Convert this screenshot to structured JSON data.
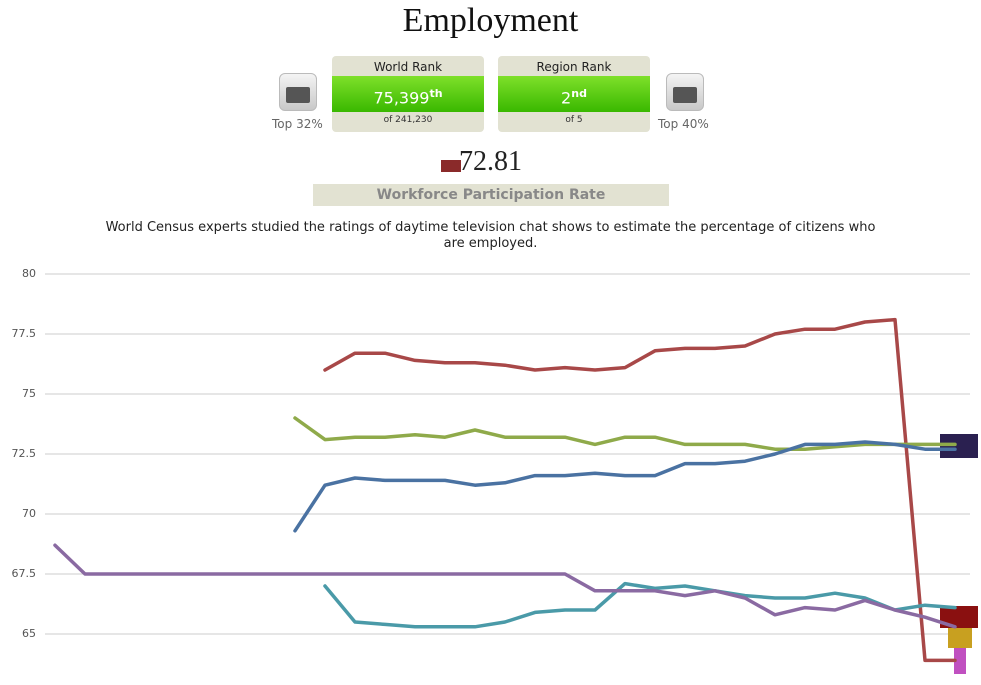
{
  "header": {
    "title": "Employment",
    "world_rank_label": "World Rank",
    "world_rank": "75,399",
    "world_rank_suffix": "th",
    "world_of": "of 241,230",
    "world_top": "Top 32%",
    "region_rank_label": "Region Rank",
    "region_rank": "2",
    "region_rank_suffix": "nd",
    "region_of": "of 5",
    "region_top": "Top 40%",
    "score": "72.81",
    "metric": "Workforce Participation Rate",
    "description": "World Census experts studied the ratings of daytime television chat shows to estimate the percentage of citizens who are employed."
  },
  "chart_data": {
    "type": "line",
    "ylim": [
      63,
      80
    ],
    "yticks": [
      80,
      77.5,
      75,
      72.5,
      70,
      67.5,
      65
    ],
    "grid": true,
    "series": [
      {
        "color": "#a84848",
        "values": [
          null,
          null,
          null,
          null,
          null,
          null,
          null,
          null,
          null,
          76.0,
          76.7,
          76.7,
          76.4,
          76.3,
          76.3,
          76.2,
          76.0,
          76.1,
          76.0,
          76.1,
          76.8,
          76.9,
          76.9,
          77.0,
          77.5,
          77.7,
          77.7,
          78.0,
          78.1,
          63.9,
          63.9
        ]
      },
      {
        "color": "#8faa4a",
        "values": [
          null,
          null,
          null,
          null,
          null,
          null,
          null,
          null,
          74.0,
          73.1,
          73.2,
          73.2,
          73.3,
          73.2,
          73.5,
          73.2,
          73.2,
          73.2,
          72.9,
          73.2,
          73.2,
          72.9,
          72.9,
          72.9,
          72.7,
          72.7,
          72.8,
          72.9,
          72.9,
          72.9,
          72.9
        ]
      },
      {
        "color": "#4a72a2",
        "values": [
          null,
          null,
          null,
          null,
          null,
          null,
          null,
          null,
          69.3,
          71.2,
          71.5,
          71.4,
          71.4,
          71.4,
          71.2,
          71.3,
          71.6,
          71.6,
          71.7,
          71.6,
          71.6,
          72.1,
          72.1,
          72.2,
          72.5,
          72.9,
          72.9,
          73.0,
          72.9,
          72.7,
          72.7
        ]
      },
      {
        "color": "#4a9aa8",
        "values": [
          null,
          null,
          null,
          null,
          null,
          null,
          null,
          null,
          null,
          67.0,
          65.5,
          65.4,
          65.3,
          65.3,
          65.3,
          65.5,
          65.9,
          66.0,
          66.0,
          67.1,
          66.9,
          67.0,
          66.8,
          66.6,
          66.5,
          66.5,
          66.7,
          66.5,
          66.0,
          66.2,
          66.1
        ]
      },
      {
        "color": "#8a6aa2",
        "values": [
          68.7,
          67.5,
          67.5,
          67.5,
          67.5,
          67.5,
          67.5,
          67.5,
          67.5,
          67.5,
          67.5,
          67.5,
          67.5,
          67.5,
          67.5,
          67.5,
          67.5,
          67.5,
          66.8,
          66.8,
          66.8,
          66.6,
          66.8,
          66.5,
          65.8,
          66.1,
          66.0,
          66.4,
          66.0,
          65.7,
          65.3
        ]
      }
    ]
  }
}
